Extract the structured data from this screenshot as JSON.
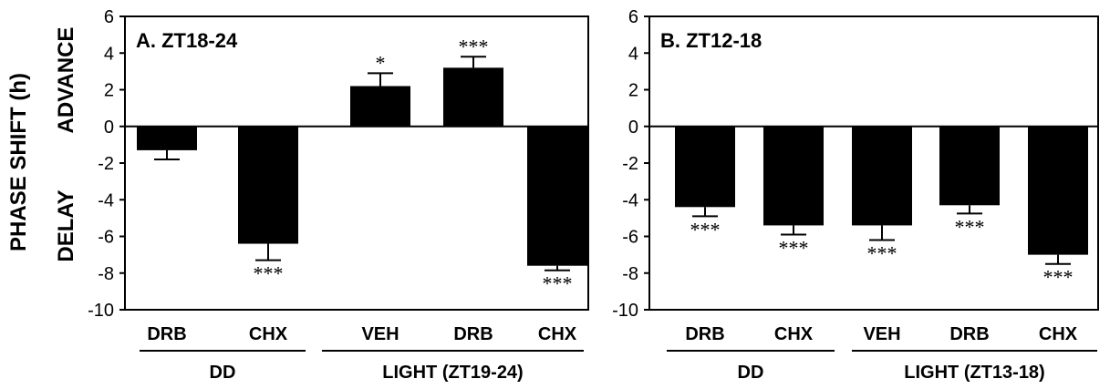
{
  "y_axis": {
    "label": "PHASE SHIFT (h)",
    "advance_label": "ADVANCE",
    "delay_label": "DELAY"
  },
  "colors": {
    "bar": "#000000",
    "axis": "#000000",
    "background": "#ffffff"
  },
  "chart_data": [
    {
      "type": "bar",
      "title": "A. ZT18-24",
      "categories": [
        "DRB",
        "CHX",
        "VEH",
        "DRB",
        "CHX"
      ],
      "values": [
        -1.3,
        -6.4,
        2.2,
        3.2,
        -7.6
      ],
      "errors": [
        0.5,
        0.9,
        0.7,
        0.6,
        0.25
      ],
      "significance": [
        "",
        "***",
        "*",
        "***",
        "***"
      ],
      "groups": [
        {
          "label": "DD",
          "categories": [
            0,
            1
          ]
        },
        {
          "label": "LIGHT (ZT19-24)",
          "categories": [
            2,
            3,
            4
          ]
        }
      ],
      "ylim": [
        -10,
        6
      ],
      "yticks": [
        6,
        4,
        2,
        0,
        -2,
        -4,
        -6,
        -8,
        -10
      ],
      "xlabel": "",
      "ylabel": "PHASE SHIFT (h)",
      "grid": false
    },
    {
      "type": "bar",
      "title": "B. ZT12-18",
      "categories": [
        "DRB",
        "CHX",
        "VEH",
        "DRB",
        "CHX"
      ],
      "values": [
        -4.4,
        -5.4,
        -5.4,
        -4.3,
        -7.0
      ],
      "errors": [
        0.5,
        0.5,
        0.8,
        0.45,
        0.5
      ],
      "significance": [
        "***",
        "***",
        "***",
        "***",
        "***"
      ],
      "groups": [
        {
          "label": "DD",
          "categories": [
            0,
            1
          ]
        },
        {
          "label": "LIGHT (ZT13-18)",
          "categories": [
            2,
            3,
            4
          ]
        }
      ],
      "ylim": [
        -10,
        6
      ],
      "yticks": [
        6,
        4,
        2,
        0,
        -2,
        -4,
        -6,
        -8,
        -10
      ],
      "xlabel": "",
      "ylabel": "",
      "grid": false
    }
  ]
}
